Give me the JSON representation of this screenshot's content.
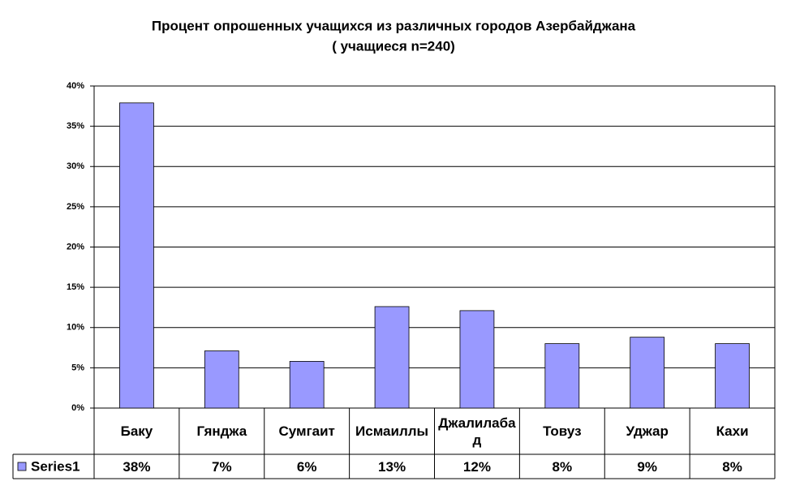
{
  "chart_data": {
    "type": "bar",
    "title": "Процент опрошенных учащихся из различных городов Азербайджана",
    "subtitle": "( учащиеся n=240)",
    "categories": [
      "Баку",
      "Гянджа",
      "Сумгаит",
      "Исмаиллы",
      "Джалилабад",
      "Товуз",
      "Уджар",
      "Кахи"
    ],
    "series": [
      {
        "name": "Series1",
        "color": "#9999ff",
        "values": [
          37.9,
          7.1,
          5.8,
          12.6,
          12.1,
          8.0,
          8.8,
          8.0
        ],
        "value_labels": [
          "38%",
          "7%",
          "6%",
          "13%",
          "12%",
          "8%",
          "9%",
          "8%"
        ]
      }
    ],
    "ylim": [
      0,
      40
    ],
    "yticks": [
      {
        "value": 0,
        "label": "0%"
      },
      {
        "value": 5,
        "label": "5%"
      },
      {
        "value": 10,
        "label": "10%"
      },
      {
        "value": 15,
        "label": "15%"
      },
      {
        "value": 20,
        "label": "20%"
      },
      {
        "value": 25,
        "label": "25%"
      },
      {
        "value": 30,
        "label": "30%"
      },
      {
        "value": 35,
        "label": "35%"
      },
      {
        "value": 40,
        "label": "40%"
      }
    ],
    "grid": true,
    "legend": "data-table"
  }
}
